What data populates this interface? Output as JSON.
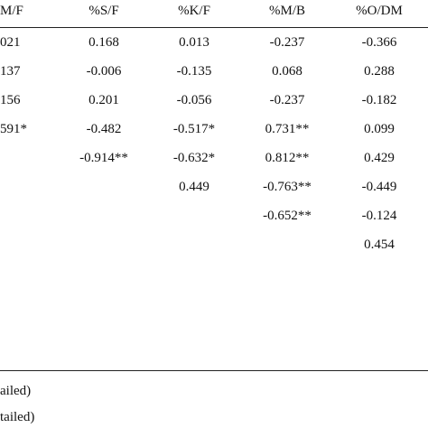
{
  "table": {
    "header": [
      "M/F",
      "%S/F",
      "%K/F",
      "%M/B",
      "%O/DM"
    ],
    "rows": [
      [
        "021",
        "0.168",
        "0.013",
        "-0.237",
        "-0.366"
      ],
      [
        "137",
        "-0.006",
        "-0.135",
        "0.068",
        "0.288"
      ],
      [
        "156",
        "0.201",
        "-0.056",
        "-0.237",
        "-0.182"
      ],
      [
        "591*",
        "-0.482",
        "-0.517*",
        "0.731**",
        "0.099"
      ],
      [
        null,
        "-0.914**",
        "-0.632*",
        "0.812**",
        "0.429"
      ],
      [
        null,
        null,
        "0.449",
        "-0.763**",
        "-0.449"
      ],
      [
        null,
        null,
        null,
        "-0.652**",
        "-0.124"
      ],
      [
        null,
        null,
        null,
        null,
        "0.454"
      ]
    ]
  },
  "footnotes": [
    "ailed)",
    "tailed)"
  ]
}
